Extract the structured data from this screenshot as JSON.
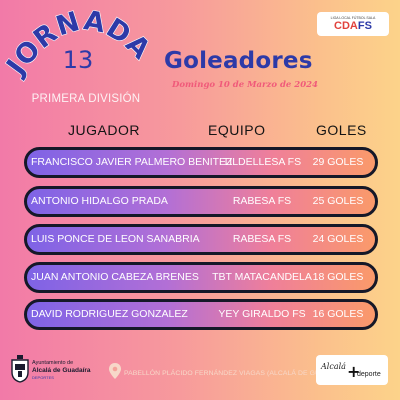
{
  "header": {
    "jornada_label": "JORNADA",
    "jornada_number": "13",
    "division": "PRIMERA DIVISIÓN",
    "title": "Goleadores",
    "date": "Domingo 10 de Marzo de 2024"
  },
  "logo": {
    "subtitle": "LIGA LOCAL FÚTBOL SALA",
    "brand_part1": "CDA",
    "brand_part2": "FS"
  },
  "columns": {
    "player": "JUGADOR",
    "team": "EQUIPO",
    "goals": "GOLES"
  },
  "scorers": [
    {
      "player": "FRANCISCO JAVIER PALMERO BENITEZ",
      "team": "TILDELLESA FS",
      "goals": "29 GOLES"
    },
    {
      "player": "ANTONIO HIDALGO PRADA",
      "team": "RABESA FS",
      "goals": "25 GOLES"
    },
    {
      "player": "LUIS PONCE DE LEON SANABRIA",
      "team": "RABESA FS",
      "goals": "24 GOLES"
    },
    {
      "player": "JUAN ANTONIO CABEZA BRENES",
      "team": "TBT MATACANDELA",
      "goals": "18 GOLES"
    },
    {
      "player": "DAVID RODRIGUEZ GONZALEZ",
      "team": "YEY GIRALDO FS",
      "goals": "16 GOLES"
    }
  ],
  "footer": {
    "ayto_line1": "Ayuntamiento de",
    "ayto_line2": "Alcalá de Guadaíra",
    "ayto_line3": "DEPORTES",
    "venue": "PABELLÓN PLÁCIDO FERNÁNDEZ VIAGAS (ALCALÁ DE GUADAÍRA)",
    "sponsor_part1": "Alcalá",
    "sponsor_plus": "+",
    "sponsor_part2": "deporte"
  },
  "colors": {
    "accent_blue": "#2d3aa8",
    "date_pink": "#f05a7a",
    "row_border": "#151828"
  }
}
